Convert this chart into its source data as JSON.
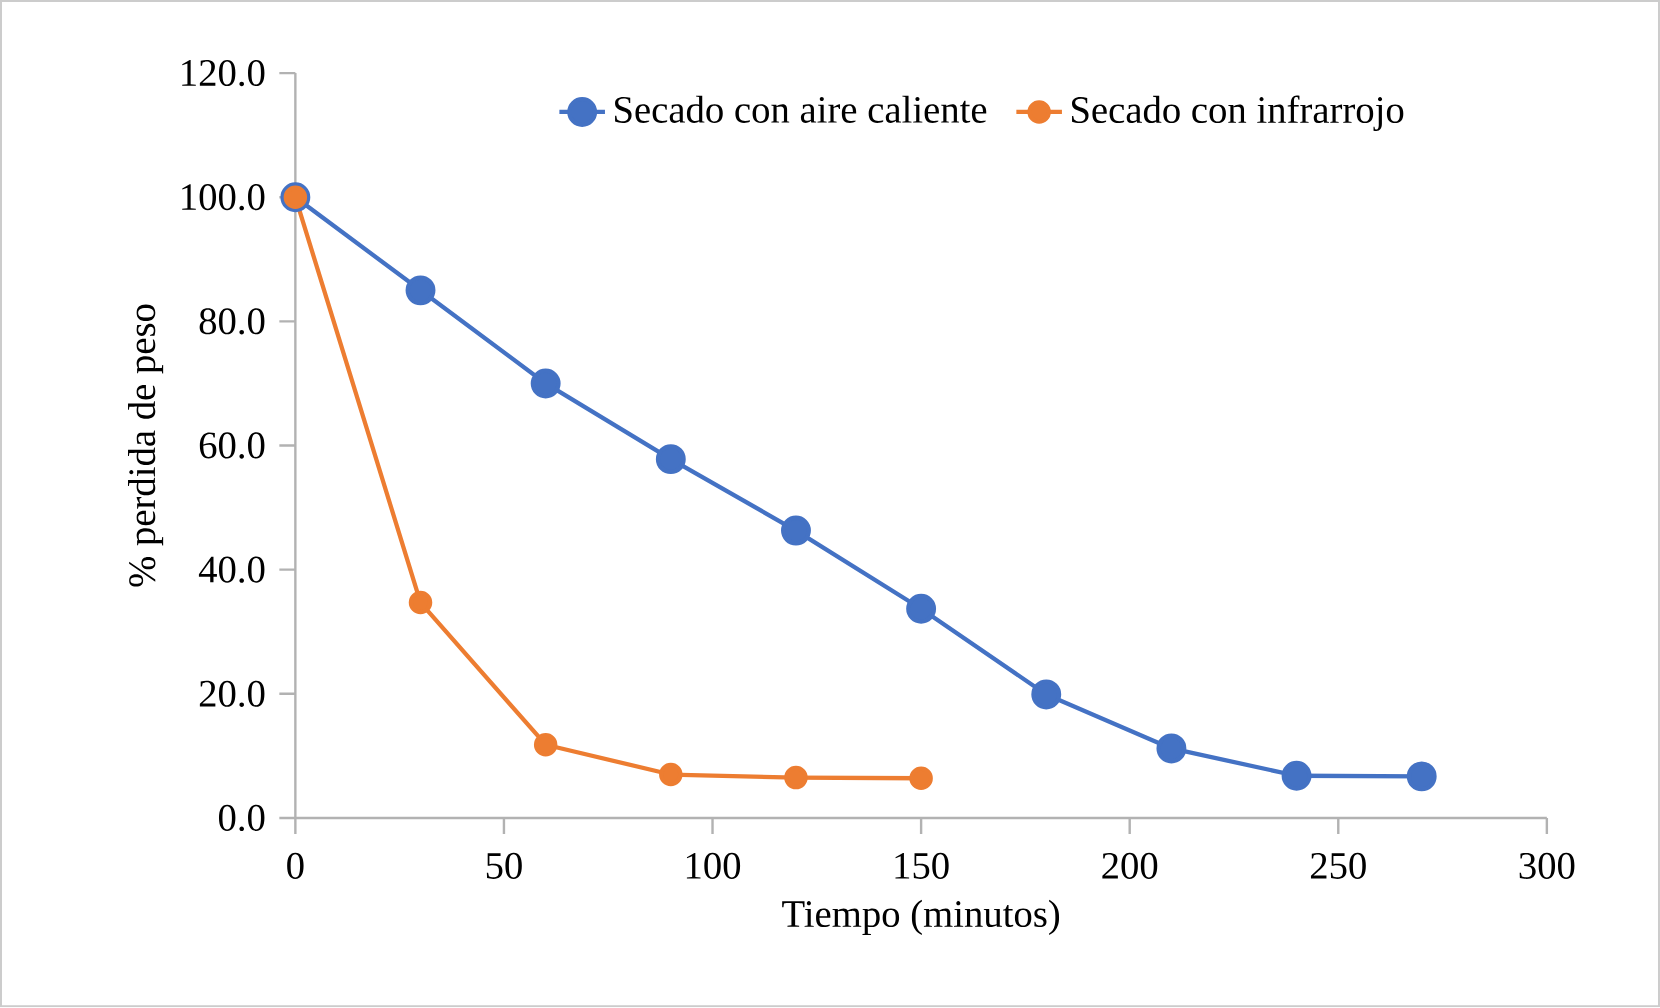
{
  "chart_data": {
    "type": "line",
    "xlabel": "Tiempo (minutos)",
    "ylabel": "% perdida de peso",
    "series": [
      {
        "name": "Secado con aire caliente",
        "color": "#4472c4",
        "x": [
          0,
          30,
          60,
          90,
          120,
          150,
          180,
          210,
          240,
          270
        ],
        "values": [
          100,
          85.0,
          70.0,
          57.8,
          46.3,
          33.7,
          19.9,
          11.2,
          6.8,
          6.7
        ]
      },
      {
        "name": "Secado con infrarrojo",
        "color": "#ed7d31",
        "x": [
          0,
          30,
          60,
          90,
          120,
          150
        ],
        "values": [
          100,
          34.7,
          11.8,
          7.0,
          6.5,
          6.4
        ]
      }
    ],
    "xlim": [
      0,
      300
    ],
    "ylim": [
      0,
      120
    ],
    "xticks": [
      0,
      50,
      100,
      150,
      200,
      250,
      300
    ],
    "yticks": [
      {
        "value": 0,
        "label": "0.0"
      },
      {
        "value": 20,
        "label": "20.0"
      },
      {
        "value": 40,
        "label": "40.0"
      },
      {
        "value": 60,
        "label": "60.0"
      },
      {
        "value": 80,
        "label": "80.0"
      },
      {
        "value": 100,
        "label": "100.0"
      },
      {
        "value": 120,
        "label": "120.0"
      }
    ],
    "grid": false,
    "legend": "top",
    "marker": "circle",
    "line_style": "solid"
  }
}
